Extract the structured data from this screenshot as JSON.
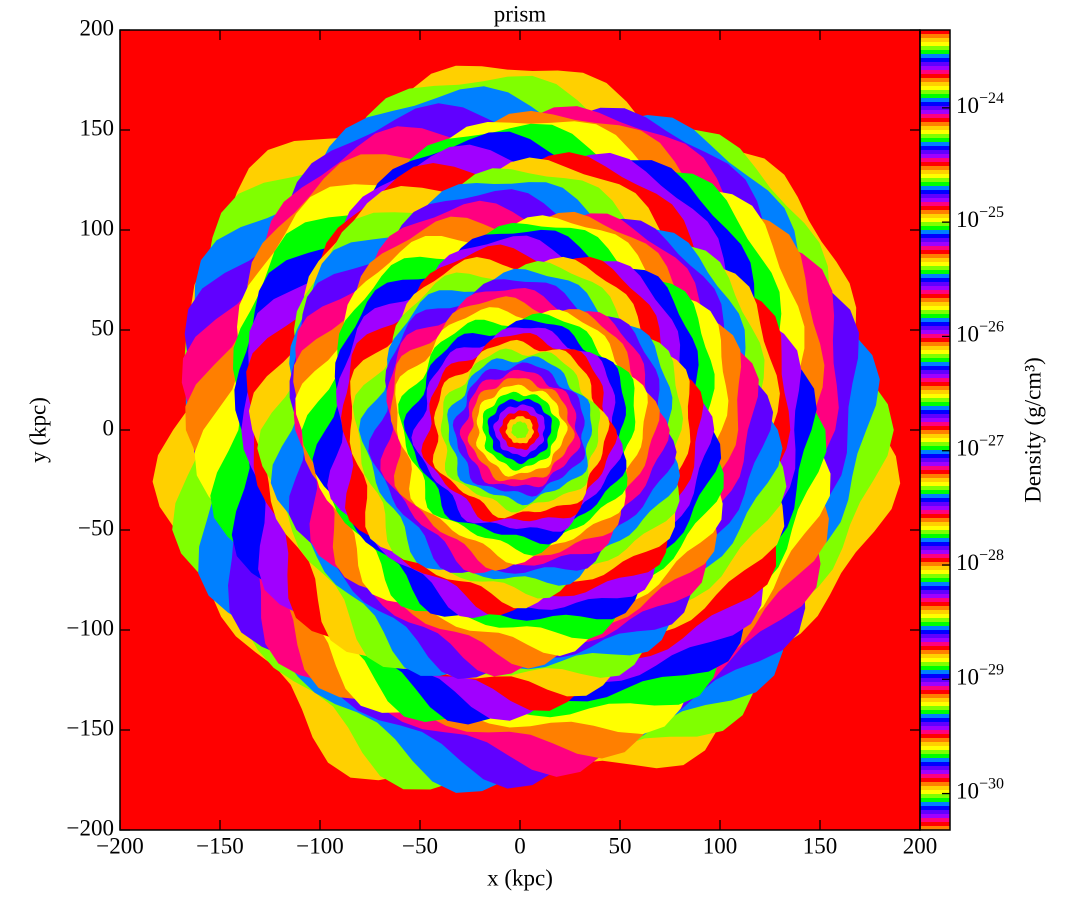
{
  "chart_data": {
    "type": "image",
    "title": "prism",
    "xlabel": "x (kpc)",
    "ylabel": "y (kpc)",
    "xlim": [
      -200,
      200
    ],
    "ylim": [
      -200,
      200
    ],
    "xticks": [
      {
        "value": -200,
        "label": "−200"
      },
      {
        "value": -150,
        "label": "−150"
      },
      {
        "value": -100,
        "label": "−100"
      },
      {
        "value": -50,
        "label": "−50"
      },
      0,
      50,
      100,
      150,
      200
    ],
    "yticks": [
      {
        "value": -200,
        "label": "−200"
      },
      {
        "value": -150,
        "label": "−150"
      },
      {
        "value": -100,
        "label": "−100"
      },
      {
        "value": -50,
        "label": "−50"
      },
      0,
      50,
      100,
      150,
      200
    ],
    "colorbar_label": "Density (g/cm³)",
    "colormap": "prism",
    "color_scale": "log",
    "clim": [
      4.8e-31,
      4.8e-24
    ],
    "cticks": [
      {
        "value": 1e-30,
        "label": "10−30"
      },
      {
        "value": 1e-29,
        "label": "10−29"
      },
      {
        "value": 1e-28,
        "label": "10−28"
      },
      {
        "value": 1e-27,
        "label": "10−27"
      },
      {
        "value": 1e-26,
        "label": "10−26"
      },
      {
        "value": 1e-25,
        "label": "10−25"
      },
      {
        "value": 1e-24,
        "label": "10−24"
      }
    ]
  }
}
